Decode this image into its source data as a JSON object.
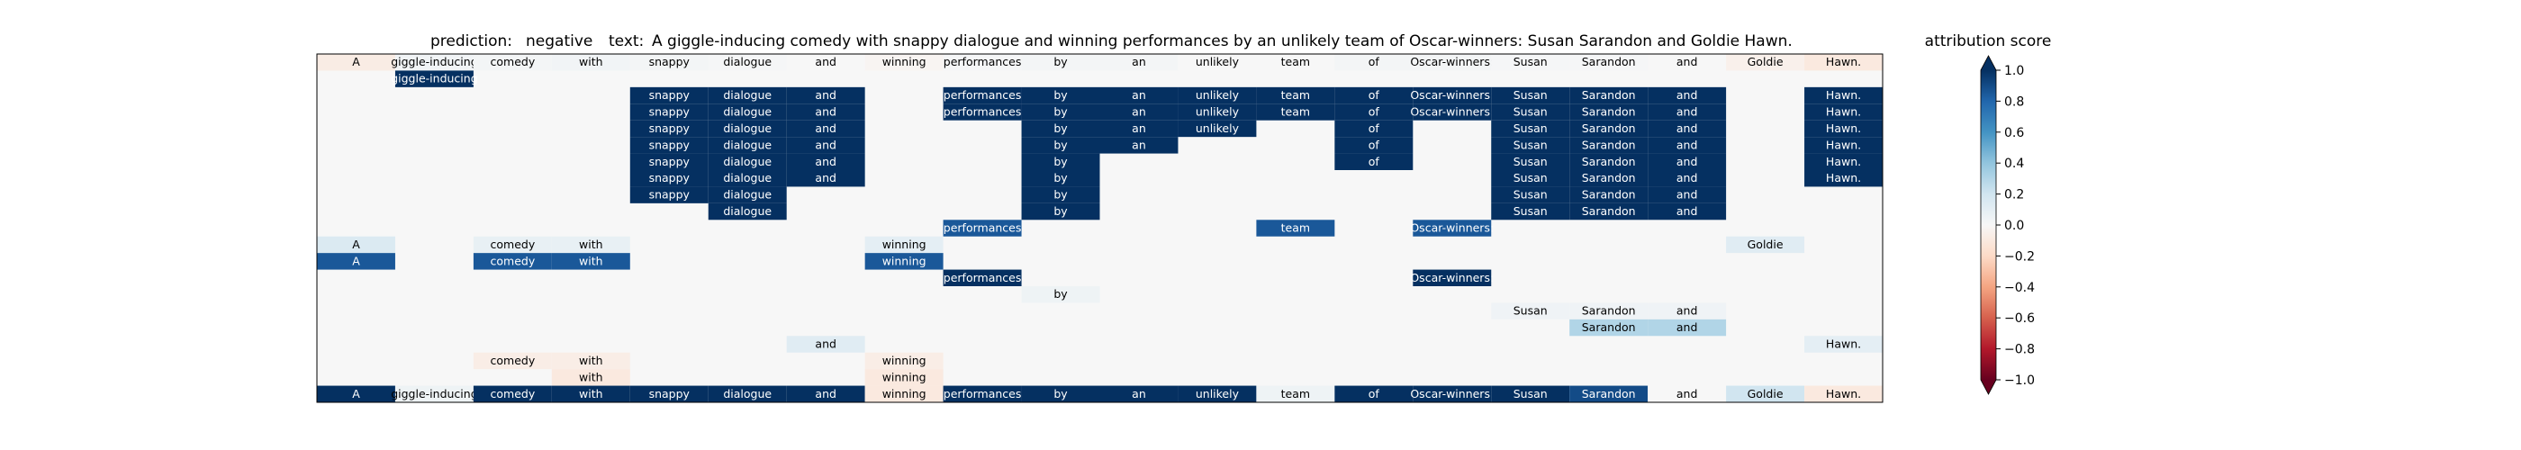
{
  "header": {
    "prediction_label": "prediction:",
    "prediction_value": "negative",
    "text_label": "text:",
    "text_value": "A giggle-inducing comedy with snappy dialogue and winning performances by an unlikely team of Oscar-winners: Susan Sarandon and Goldie Hawn."
  },
  "colorbar": {
    "title": "attribution score",
    "ticks": [
      "1.0",
      "0.8",
      "0.6",
      "0.4",
      "0.2",
      "0.0",
      "−0.2",
      "−0.4",
      "−0.6",
      "−0.8",
      "−1.0"
    ],
    "colormap": "RdBu",
    "extend": "both"
  },
  "chart_data": {
    "type": "heatmap",
    "title": "",
    "xlabel": "",
    "ylabel": "",
    "vmin": -1.0,
    "vmax": 1.0,
    "tokens": [
      "A",
      "giggle-inducing",
      "comedy",
      "with",
      "snappy",
      "dialogue",
      "and",
      "winning",
      "performances",
      "by",
      "an",
      "unlikely",
      "team",
      "of",
      "Oscar-winners:",
      "Susan",
      "Sarandon",
      "and",
      "Goldie",
      "Hawn."
    ],
    "rows": [
      [
        -0.08,
        0.03,
        0.02,
        0.03,
        0.02,
        0.01,
        0.0,
        -0.02,
        0.01,
        0.02,
        0.02,
        0.0,
        0.0,
        0.02,
        0.02,
        0.01,
        0.01,
        0.0,
        -0.05,
        -0.1
      ],
      [
        null,
        1.0,
        null,
        null,
        null,
        null,
        null,
        null,
        null,
        null,
        null,
        null,
        null,
        null,
        null,
        null,
        null,
        null,
        null,
        null
      ],
      [
        null,
        null,
        null,
        null,
        1.0,
        1.0,
        1.0,
        null,
        1.0,
        1.0,
        1.0,
        1.0,
        1.0,
        1.0,
        1.0,
        1.0,
        1.0,
        1.0,
        null,
        1.0
      ],
      [
        null,
        null,
        null,
        null,
        1.0,
        1.0,
        1.0,
        null,
        1.0,
        1.0,
        1.0,
        1.0,
        1.0,
        1.0,
        1.0,
        1.0,
        1.0,
        1.0,
        null,
        1.0
      ],
      [
        null,
        null,
        null,
        null,
        1.0,
        1.0,
        1.0,
        null,
        null,
        1.0,
        1.0,
        1.0,
        null,
        1.0,
        null,
        1.0,
        1.0,
        1.0,
        null,
        1.0
      ],
      [
        null,
        null,
        null,
        null,
        1.0,
        1.0,
        1.0,
        null,
        null,
        1.0,
        1.0,
        null,
        null,
        1.0,
        null,
        1.0,
        1.0,
        1.0,
        null,
        1.0
      ],
      [
        null,
        null,
        null,
        null,
        1.0,
        1.0,
        1.0,
        null,
        null,
        1.0,
        null,
        null,
        null,
        1.0,
        null,
        1.0,
        1.0,
        1.0,
        null,
        1.0
      ],
      [
        null,
        null,
        null,
        null,
        1.0,
        1.0,
        1.0,
        null,
        null,
        1.0,
        null,
        null,
        null,
        null,
        null,
        1.0,
        1.0,
        1.0,
        null,
        1.0
      ],
      [
        null,
        null,
        null,
        null,
        1.0,
        1.0,
        null,
        null,
        null,
        1.0,
        null,
        null,
        null,
        null,
        null,
        1.0,
        1.0,
        1.0,
        null,
        null
      ],
      [
        null,
        null,
        null,
        null,
        null,
        1.0,
        null,
        null,
        null,
        1.0,
        null,
        null,
        null,
        null,
        null,
        1.0,
        1.0,
        1.0,
        null,
        null
      ],
      [
        null,
        null,
        null,
        null,
        null,
        null,
        null,
        null,
        0.85,
        null,
        null,
        null,
        0.85,
        null,
        0.85,
        null,
        null,
        null,
        null,
        null
      ],
      [
        0.15,
        null,
        0.08,
        0.08,
        null,
        null,
        null,
        0.1,
        null,
        null,
        null,
        null,
        null,
        null,
        null,
        null,
        null,
        null,
        0.12,
        null
      ],
      [
        0.85,
        null,
        0.85,
        0.85,
        null,
        null,
        null,
        0.85,
        null,
        null,
        null,
        null,
        null,
        null,
        null,
        null,
        null,
        null,
        null,
        null
      ],
      [
        null,
        null,
        null,
        null,
        null,
        null,
        null,
        null,
        1.0,
        null,
        null,
        null,
        null,
        null,
        1.0,
        null,
        null,
        null,
        null,
        null
      ],
      [
        null,
        null,
        null,
        null,
        null,
        null,
        null,
        null,
        null,
        0.05,
        null,
        null,
        null,
        null,
        null,
        null,
        null,
        null,
        null,
        null
      ],
      [
        null,
        null,
        null,
        null,
        null,
        null,
        null,
        null,
        null,
        null,
        null,
        null,
        null,
        null,
        null,
        0.04,
        0.04,
        0.04,
        null,
        null
      ],
      [
        null,
        null,
        null,
        null,
        null,
        null,
        null,
        null,
        null,
        null,
        null,
        null,
        null,
        null,
        null,
        null,
        0.3,
        0.3,
        null,
        null
      ],
      [
        null,
        null,
        null,
        null,
        null,
        null,
        0.12,
        null,
        null,
        null,
        null,
        null,
        null,
        null,
        null,
        null,
        null,
        null,
        null,
        0.1
      ],
      [
        null,
        null,
        -0.07,
        -0.07,
        null,
        null,
        null,
        -0.07,
        null,
        null,
        null,
        null,
        null,
        null,
        null,
        null,
        null,
        null,
        null,
        null
      ],
      [
        null,
        null,
        null,
        -0.1,
        null,
        null,
        null,
        -0.1,
        null,
        null,
        null,
        null,
        null,
        null,
        null,
        null,
        null,
        null,
        null,
        null
      ],
      [
        1.0,
        0.05,
        1.0,
        1.0,
        1.0,
        1.0,
        1.0,
        -0.1,
        1.0,
        1.0,
        1.0,
        1.0,
        0.05,
        1.0,
        1.0,
        1.0,
        0.9,
        0.0,
        0.2,
        -0.1
      ]
    ]
  }
}
